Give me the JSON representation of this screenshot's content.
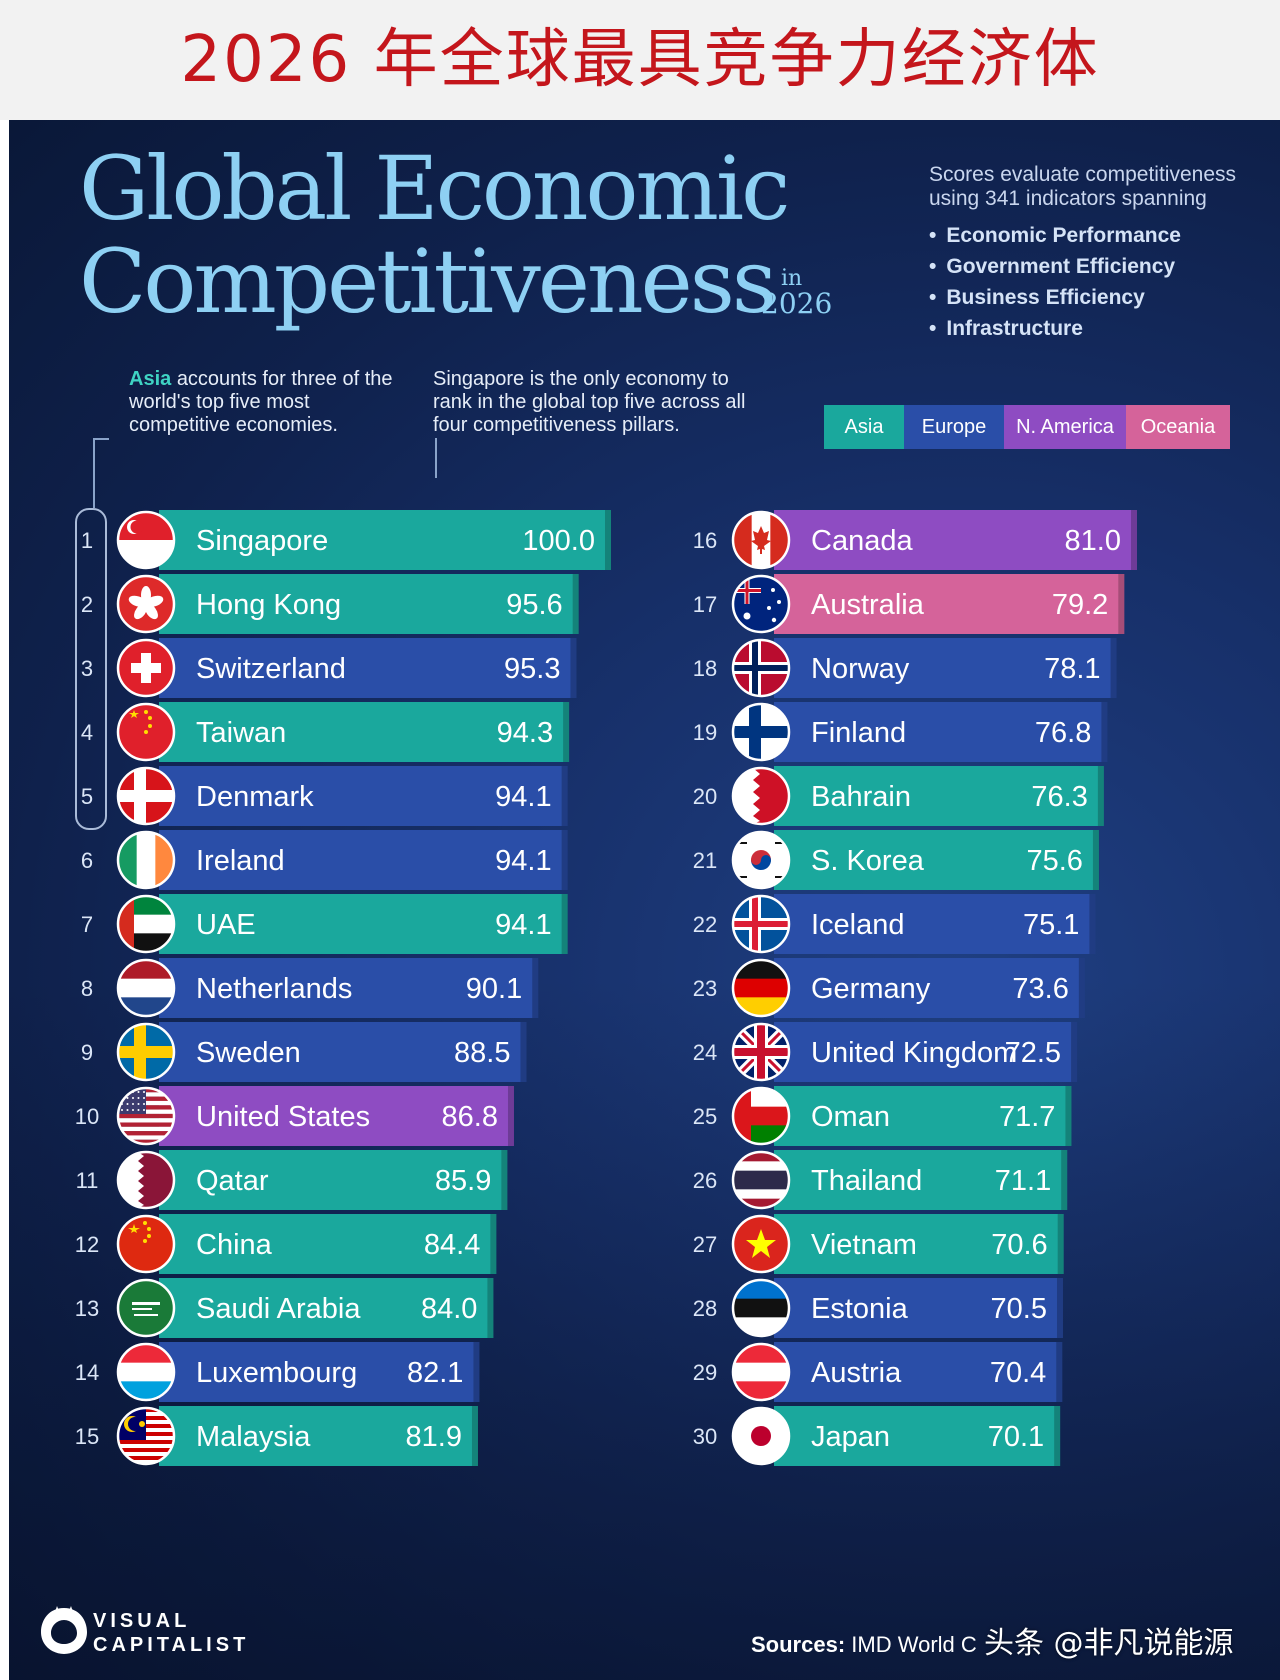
{
  "page_title_cn": "2026 年全球最具竞争力经济体",
  "heading": {
    "line1": "Global Economic",
    "line2": "Competitiveness",
    "in_word": "in",
    "year": "2026"
  },
  "intro": {
    "text": "Scores evaluate competitiveness using 341 indicators spanning",
    "pillars": [
      "Economic Performance",
      "Government Efficiency",
      "Business Efficiency",
      "Infrastructure"
    ]
  },
  "notes": {
    "asia_word": "Asia",
    "asia_rest": "accounts for three of the world's top five most competitive economies.",
    "singapore": "Singapore is the only economy to rank in the global top five across all four competitiveness pillars."
  },
  "legend": [
    {
      "label": "Asia",
      "color": "#1aa89d"
    },
    {
      "label": "Europe",
      "color": "#2a4ea8"
    },
    {
      "label": "N. America",
      "color": "#8e4cc2"
    },
    {
      "label": "Oceania",
      "color": "#d5639a"
    }
  ],
  "colors": {
    "Asia": "#1aa89d",
    "Europe": "#2a4ea8",
    "N. America": "#8e4cc2",
    "Oceania": "#d5639a"
  },
  "chart_data": {
    "type": "bar",
    "title": "Global Economic Competitiveness in 2026",
    "categories": [
      "Singapore",
      "Hong Kong",
      "Switzerland",
      "Taiwan",
      "Denmark",
      "Ireland",
      "UAE",
      "Netherlands",
      "Sweden",
      "United States",
      "Qatar",
      "China",
      "Saudi Arabia",
      "Luxembourg",
      "Malaysia",
      "Canada",
      "Australia",
      "Norway",
      "Finland",
      "Bahrain",
      "S. Korea",
      "Iceland",
      "Germany",
      "United Kingdom",
      "Oman",
      "Thailand",
      "Vietnam",
      "Estonia",
      "Austria",
      "Japan"
    ],
    "ranks": [
      1,
      2,
      3,
      4,
      5,
      6,
      7,
      8,
      9,
      10,
      11,
      12,
      13,
      14,
      15,
      16,
      17,
      18,
      19,
      20,
      21,
      22,
      23,
      24,
      25,
      26,
      27,
      28,
      29,
      30
    ],
    "values": [
      100.0,
      95.6,
      95.3,
      94.3,
      94.1,
      94.1,
      94.1,
      90.1,
      88.5,
      86.8,
      85.9,
      84.4,
      84.0,
      82.1,
      81.9,
      81.0,
      79.2,
      78.1,
      76.8,
      76.3,
      75.6,
      75.1,
      73.6,
      72.5,
      71.7,
      71.1,
      70.6,
      70.5,
      70.4,
      70.1
    ],
    "labels": [
      "100.0",
      "95.6",
      "95.3",
      "94.3",
      "94.1",
      "94.1",
      "94.1",
      "90.1",
      "88.5",
      "86.8",
      "85.9",
      "84.4",
      "84.0",
      "82.1",
      "81.9",
      "81.0",
      "79.2",
      "78.1",
      "76.8",
      "76.3",
      "75.6",
      "75.1",
      "73.6",
      "72.5",
      "71.7",
      "71.1",
      "70.6",
      "70.5",
      "70.4",
      "70.1"
    ],
    "regions": [
      "Asia",
      "Asia",
      "Europe",
      "Asia",
      "Europe",
      "Europe",
      "Asia",
      "Europe",
      "Europe",
      "N. America",
      "Asia",
      "Asia",
      "Asia",
      "Europe",
      "Asia",
      "N. America",
      "Oceania",
      "Europe",
      "Europe",
      "Asia",
      "Asia",
      "Europe",
      "Europe",
      "Europe",
      "Asia",
      "Asia",
      "Asia",
      "Europe",
      "Europe",
      "Asia"
    ],
    "flags": [
      "singapore-flag-icon",
      "hong-kong-flag-icon",
      "switzerland-flag-icon",
      "taiwan-flag-icon",
      "denmark-flag-icon",
      "ireland-flag-icon",
      "uae-flag-icon",
      "netherlands-flag-icon",
      "sweden-flag-icon",
      "united-states-flag-icon",
      "qatar-flag-icon",
      "china-flag-icon",
      "saudi-arabia-flag-icon",
      "luxembourg-flag-icon",
      "malaysia-flag-icon",
      "canada-flag-icon",
      "australia-flag-icon",
      "norway-flag-icon",
      "finland-flag-icon",
      "bahrain-flag-icon",
      "south-korea-flag-icon",
      "iceland-flag-icon",
      "germany-flag-icon",
      "united-kingdom-flag-icon",
      "oman-flag-icon",
      "thailand-flag-icon",
      "vietnam-flag-icon",
      "estonia-flag-icon",
      "austria-flag-icon",
      "japan-flag-icon"
    ],
    "ylim": [
      0,
      100
    ],
    "grid": false,
    "legend_position": "top-right"
  },
  "footer": {
    "logo_line1": "VISUAL",
    "logo_line2": "CAPITALIST",
    "sources_label": "Sources:",
    "sources_text": "IMD World C",
    "watermark": "头条 @非凡说能源"
  }
}
